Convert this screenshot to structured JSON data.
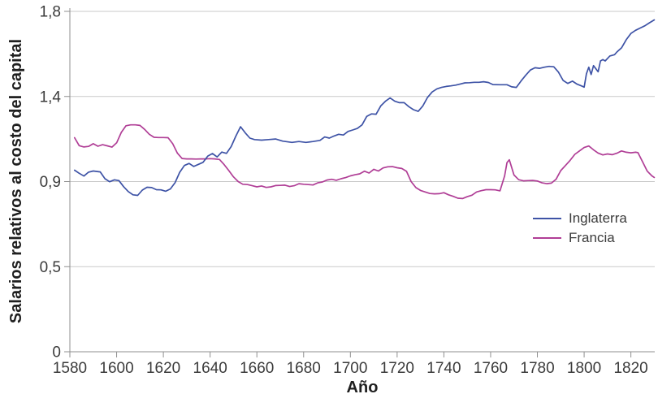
{
  "colors": {
    "england_line": "#3E53A6",
    "france_line": "#B03E96",
    "gridline": "#C9C9C9",
    "axis": "#8F8F8F",
    "tick_text": "#3B3B3B",
    "title_text": "#1F1F1F"
  },
  "chart_data": {
    "type": "line",
    "title": "",
    "xlabel": "Año",
    "ylabel": "Salarios relativos al costo del capital",
    "xlim": [
      1580,
      1830
    ],
    "ylim": [
      0,
      1.8
    ],
    "grid": "horizontal",
    "legend_position": "right-middle",
    "x_ticks": [
      1580,
      1600,
      1620,
      1640,
      1660,
      1680,
      1700,
      1720,
      1740,
      1760,
      1780,
      1800,
      1820
    ],
    "y_ticks": [
      {
        "label": "0",
        "value": 0
      },
      {
        "label": "0,5",
        "value": 0.45
      },
      {
        "label": "0,9",
        "value": 0.9
      },
      {
        "label": "1,4",
        "value": 1.35
      },
      {
        "label": "1,8",
        "value": 1.8
      }
    ],
    "series": [
      {
        "name": "Inglaterra",
        "color": "#3E53A6",
        "points": [
          [
            1582,
            0.96
          ],
          [
            1584,
            0.944
          ],
          [
            1586,
            0.929
          ],
          [
            1588,
            0.95
          ],
          [
            1590,
            0.956
          ],
          [
            1593,
            0.951
          ],
          [
            1595,
            0.915
          ],
          [
            1597,
            0.899
          ],
          [
            1599,
            0.909
          ],
          [
            1601,
            0.905
          ],
          [
            1603,
            0.873
          ],
          [
            1605,
            0.847
          ],
          [
            1607,
            0.83
          ],
          [
            1609,
            0.827
          ],
          [
            1611,
            0.855
          ],
          [
            1613,
            0.87
          ],
          [
            1615,
            0.868
          ],
          [
            1617,
            0.857
          ],
          [
            1619,
            0.856
          ],
          [
            1621,
            0.849
          ],
          [
            1623,
            0.861
          ],
          [
            1625,
            0.894
          ],
          [
            1627,
            0.949
          ],
          [
            1629,
            0.985
          ],
          [
            1631,
            0.996
          ],
          [
            1633,
            0.98
          ],
          [
            1635,
            0.991
          ],
          [
            1637,
            1.002
          ],
          [
            1639,
            1.035
          ],
          [
            1641,
            1.048
          ],
          [
            1643,
            1.03
          ],
          [
            1645,
            1.056
          ],
          [
            1647,
            1.049
          ],
          [
            1649,
            1.085
          ],
          [
            1651,
            1.14
          ],
          [
            1653,
            1.19
          ],
          [
            1655,
            1.158
          ],
          [
            1657,
            1.13
          ],
          [
            1659,
            1.122
          ],
          [
            1662,
            1.119
          ],
          [
            1665,
            1.122
          ],
          [
            1668,
            1.125
          ],
          [
            1671,
            1.114
          ],
          [
            1675,
            1.107
          ],
          [
            1678,
            1.112
          ],
          [
            1681,
            1.107
          ],
          [
            1684,
            1.112
          ],
          [
            1687,
            1.118
          ],
          [
            1689,
            1.136
          ],
          [
            1691,
            1.13
          ],
          [
            1693,
            1.141
          ],
          [
            1695,
            1.15
          ],
          [
            1697,
            1.146
          ],
          [
            1699,
            1.165
          ],
          [
            1701,
            1.173
          ],
          [
            1703,
            1.181
          ],
          [
            1705,
            1.2
          ],
          [
            1707,
            1.245
          ],
          [
            1709,
            1.258
          ],
          [
            1711,
            1.256
          ],
          [
            1713,
            1.3
          ],
          [
            1715,
            1.325
          ],
          [
            1717,
            1.342
          ],
          [
            1719,
            1.325
          ],
          [
            1721,
            1.317
          ],
          [
            1723,
            1.317
          ],
          [
            1725,
            1.296
          ],
          [
            1727,
            1.28
          ],
          [
            1729,
            1.271
          ],
          [
            1731,
            1.3
          ],
          [
            1733,
            1.345
          ],
          [
            1735,
            1.374
          ],
          [
            1737,
            1.39
          ],
          [
            1739,
            1.398
          ],
          [
            1741,
            1.403
          ],
          [
            1743,
            1.406
          ],
          [
            1745,
            1.41
          ],
          [
            1747,
            1.416
          ],
          [
            1749,
            1.422
          ],
          [
            1751,
            1.423
          ],
          [
            1753,
            1.425
          ],
          [
            1755,
            1.425
          ],
          [
            1757,
            1.428
          ],
          [
            1759,
            1.424
          ],
          [
            1761,
            1.413
          ],
          [
            1764,
            1.412
          ],
          [
            1767,
            1.412
          ],
          [
            1769,
            1.401
          ],
          [
            1771,
            1.398
          ],
          [
            1773,
            1.432
          ],
          [
            1775,
            1.462
          ],
          [
            1777,
            1.49
          ],
          [
            1779,
            1.502
          ],
          [
            1781,
            1.499
          ],
          [
            1783,
            1.505
          ],
          [
            1785,
            1.509
          ],
          [
            1787,
            1.507
          ],
          [
            1789,
            1.479
          ],
          [
            1791,
            1.435
          ],
          [
            1793,
            1.419
          ],
          [
            1795,
            1.431
          ],
          [
            1797,
            1.415
          ],
          [
            1799,
            1.405
          ],
          [
            1800,
            1.399
          ],
          [
            1801,
            1.47
          ],
          [
            1802,
            1.505
          ],
          [
            1803,
            1.466
          ],
          [
            1804,
            1.513
          ],
          [
            1806,
            1.481
          ],
          [
            1807,
            1.538
          ],
          [
            1808,
            1.545
          ],
          [
            1809,
            1.538
          ],
          [
            1811,
            1.564
          ],
          [
            1813,
            1.571
          ],
          [
            1814,
            1.585
          ],
          [
            1816,
            1.607
          ],
          [
            1818,
            1.65
          ],
          [
            1820,
            1.683
          ],
          [
            1822,
            1.7
          ],
          [
            1824,
            1.712
          ],
          [
            1826,
            1.724
          ],
          [
            1828,
            1.74
          ],
          [
            1830,
            1.755
          ]
        ]
      },
      {
        "name": "Francia",
        "color": "#B03E96",
        "points": [
          [
            1582,
            1.132
          ],
          [
            1584,
            1.09
          ],
          [
            1586,
            1.083
          ],
          [
            1588,
            1.086
          ],
          [
            1590,
            1.1
          ],
          [
            1592,
            1.087
          ],
          [
            1594,
            1.095
          ],
          [
            1596,
            1.089
          ],
          [
            1598,
            1.082
          ],
          [
            1600,
            1.105
          ],
          [
            1602,
            1.16
          ],
          [
            1604,
            1.195
          ],
          [
            1606,
            1.2
          ],
          [
            1608,
            1.2
          ],
          [
            1610,
            1.197
          ],
          [
            1612,
            1.176
          ],
          [
            1614,
            1.15
          ],
          [
            1616,
            1.134
          ],
          [
            1618,
            1.133
          ],
          [
            1620,
            1.133
          ],
          [
            1622,
            1.132
          ],
          [
            1624,
            1.1
          ],
          [
            1626,
            1.05
          ],
          [
            1628,
            1.022
          ],
          [
            1630,
            1.02
          ],
          [
            1632,
            1.02
          ],
          [
            1634,
            1.019
          ],
          [
            1636,
            1.02
          ],
          [
            1638,
            1.02
          ],
          [
            1640,
            1.021
          ],
          [
            1642,
            1.02
          ],
          [
            1644,
            1.017
          ],
          [
            1646,
            0.99
          ],
          [
            1648,
            0.958
          ],
          [
            1650,
            0.925
          ],
          [
            1652,
            0.9
          ],
          [
            1654,
            0.886
          ],
          [
            1656,
            0.884
          ],
          [
            1658,
            0.878
          ],
          [
            1660,
            0.872
          ],
          [
            1662,
            0.877
          ],
          [
            1664,
            0.869
          ],
          [
            1666,
            0.872
          ],
          [
            1668,
            0.879
          ],
          [
            1670,
            0.88
          ],
          [
            1672,
            0.881
          ],
          [
            1674,
            0.874
          ],
          [
            1676,
            0.878
          ],
          [
            1678,
            0.889
          ],
          [
            1680,
            0.886
          ],
          [
            1682,
            0.884
          ],
          [
            1684,
            0.882
          ],
          [
            1686,
            0.893
          ],
          [
            1688,
            0.898
          ],
          [
            1690,
            0.908
          ],
          [
            1692,
            0.912
          ],
          [
            1694,
            0.907
          ],
          [
            1696,
            0.915
          ],
          [
            1698,
            0.921
          ],
          [
            1700,
            0.93
          ],
          [
            1702,
            0.936
          ],
          [
            1704,
            0.941
          ],
          [
            1706,
            0.955
          ],
          [
            1708,
            0.945
          ],
          [
            1710,
            0.965
          ],
          [
            1712,
            0.956
          ],
          [
            1714,
            0.972
          ],
          [
            1716,
            0.978
          ],
          [
            1718,
            0.979
          ],
          [
            1720,
            0.973
          ],
          [
            1722,
            0.969
          ],
          [
            1724,
            0.954
          ],
          [
            1726,
            0.9
          ],
          [
            1728,
            0.868
          ],
          [
            1730,
            0.853
          ],
          [
            1732,
            0.845
          ],
          [
            1734,
            0.837
          ],
          [
            1736,
            0.835
          ],
          [
            1738,
            0.836
          ],
          [
            1740,
            0.841
          ],
          [
            1742,
            0.83
          ],
          [
            1744,
            0.822
          ],
          [
            1746,
            0.812
          ],
          [
            1748,
            0.81
          ],
          [
            1750,
            0.82
          ],
          [
            1752,
            0.828
          ],
          [
            1754,
            0.845
          ],
          [
            1756,
            0.852
          ],
          [
            1758,
            0.857
          ],
          [
            1760,
            0.857
          ],
          [
            1762,
            0.856
          ],
          [
            1764,
            0.851
          ],
          [
            1766,
            0.93
          ],
          [
            1767,
            1.0
          ],
          [
            1768,
            1.015
          ],
          [
            1770,
            0.935
          ],
          [
            1772,
            0.91
          ],
          [
            1774,
            0.904
          ],
          [
            1776,
            0.905
          ],
          [
            1778,
            0.906
          ],
          [
            1780,
            0.903
          ],
          [
            1782,
            0.893
          ],
          [
            1784,
            0.889
          ],
          [
            1786,
            0.892
          ],
          [
            1788,
            0.912
          ],
          [
            1790,
            0.958
          ],
          [
            1792,
            0.985
          ],
          [
            1794,
            1.012
          ],
          [
            1796,
            1.044
          ],
          [
            1798,
            1.062
          ],
          [
            1800,
            1.08
          ],
          [
            1802,
            1.088
          ],
          [
            1804,
            1.068
          ],
          [
            1806,
            1.051
          ],
          [
            1808,
            1.041
          ],
          [
            1810,
            1.046
          ],
          [
            1812,
            1.042
          ],
          [
            1814,
            1.05
          ],
          [
            1816,
            1.062
          ],
          [
            1818,
            1.055
          ],
          [
            1820,
            1.052
          ],
          [
            1822,
            1.055
          ],
          [
            1823,
            1.053
          ],
          [
            1825,
            1.005
          ],
          [
            1827,
            0.955
          ],
          [
            1829,
            0.93
          ],
          [
            1830,
            0.922
          ]
        ]
      }
    ]
  }
}
